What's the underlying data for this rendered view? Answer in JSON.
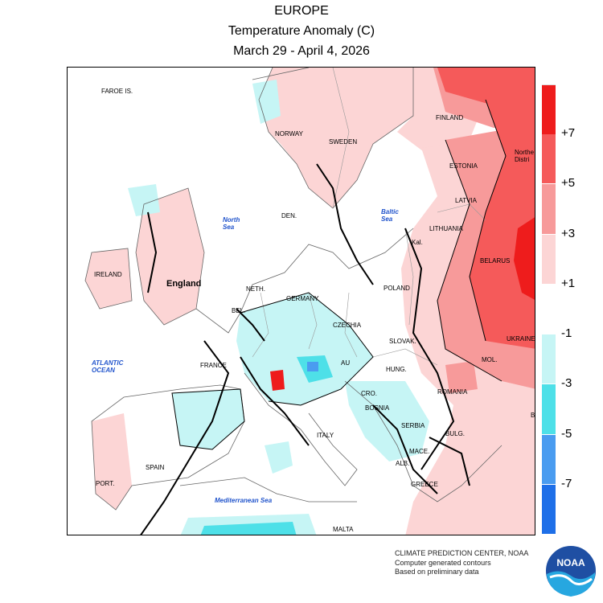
{
  "header": {
    "region": "EUROPE",
    "variable": "Temperature Anomaly (C)",
    "period": "March 29 - April 4, 2026"
  },
  "map": {
    "countries": [
      {
        "key": "faroe",
        "label": "FAROE IS."
      },
      {
        "key": "norway",
        "label": "NORWAY"
      },
      {
        "key": "sweden",
        "label": "SWEDEN"
      },
      {
        "key": "finland",
        "label": "FINLAND"
      },
      {
        "key": "estonia",
        "label": "ESTONIA"
      },
      {
        "key": "latvia",
        "label": "LATVIA"
      },
      {
        "key": "lithuania",
        "label": "LITHUANIA"
      },
      {
        "key": "den",
        "label": "DEN."
      },
      {
        "key": "kal",
        "label": "Kal."
      },
      {
        "key": "ireland",
        "label": "IRELAND"
      },
      {
        "key": "netherlands",
        "label": "NETH."
      },
      {
        "key": "belgium",
        "label": "BEL."
      },
      {
        "key": "germany",
        "label": "GERMANY"
      },
      {
        "key": "poland",
        "label": "POLAND"
      },
      {
        "key": "belarus",
        "label": "BELARUS"
      },
      {
        "key": "ukraine",
        "label": "UKRAINE"
      },
      {
        "key": "czechia",
        "label": "CZECHIA"
      },
      {
        "key": "slovakia",
        "label": "SLOVAK."
      },
      {
        "key": "france",
        "label": "FRANCE"
      },
      {
        "key": "austria",
        "label": "AU"
      },
      {
        "key": "hungary",
        "label": "HUNG."
      },
      {
        "key": "moldova",
        "label": "MOL."
      },
      {
        "key": "romania",
        "label": "ROMANIA"
      },
      {
        "key": "croatia",
        "label": "CRO."
      },
      {
        "key": "bosnia",
        "label": "BOSNIA"
      },
      {
        "key": "serbia",
        "label": "SERBIA"
      },
      {
        "key": "bulgaria",
        "label": "BULG."
      },
      {
        "key": "maced",
        "label": "MACE."
      },
      {
        "key": "albania",
        "label": "ALB."
      },
      {
        "key": "greece",
        "label": "GREECE"
      },
      {
        "key": "spain",
        "label": "SPAIN"
      },
      {
        "key": "portugal",
        "label": "PORT."
      },
      {
        "key": "italy",
        "label": "ITALY"
      },
      {
        "key": "malta",
        "label": "MALTA"
      },
      {
        "key": "northern_district",
        "label": "Northe\nDistri"
      },
      {
        "key": "b_fragment",
        "label": "B"
      }
    ],
    "regions": [
      {
        "key": "england",
        "label": "England"
      }
    ],
    "seas": [
      {
        "key": "north_sea",
        "label": "North\nSea"
      },
      {
        "key": "baltic_sea",
        "label": "Baltic\nSea"
      },
      {
        "key": "atlantic",
        "label": "ATLANTIC\nOCEAN"
      },
      {
        "key": "med",
        "label": "Mediterranean Sea"
      }
    ]
  },
  "legend": {
    "ticks": [
      "+7",
      "+5",
      "+3",
      "+1",
      "-1",
      "-3",
      "-5",
      "-7"
    ],
    "bins": [
      {
        "range": "> +7",
        "color": "#ee1c1c"
      },
      {
        "range": "+5 to +7",
        "color": "#f55a5a"
      },
      {
        "range": "+3 to +5",
        "color": "#f79a9a"
      },
      {
        "range": "+1 to +3",
        "color": "#fcd5d5"
      },
      {
        "range": "-1 to +1",
        "color": "#ffffff"
      },
      {
        "range": "-3 to -1",
        "color": "#c6f5f5"
      },
      {
        "range": "-5 to -3",
        "color": "#4ee0e8"
      },
      {
        "range": "-7 to -5",
        "color": "#4a9cf0"
      },
      {
        "range": "< -7",
        "color": "#1e6fe8"
      }
    ]
  },
  "credits": {
    "line1": "CLIMATE PREDICTION CENTER, NOAA",
    "line2": "Computer generated contours",
    "line3": "Based on preliminary data"
  },
  "logo": {
    "text": "NOAA",
    "icon": "noaa-logo-icon"
  },
  "colors": {
    "warm_strong": "#ee1c1c",
    "warm_mid": "#f55a5a",
    "warm_light": "#f79a9a",
    "warm_faint": "#fcd5d5",
    "cool_faint": "#c6f5f5",
    "cool_mid": "#4ee0e8",
    "cool_strong": "#4a9cf0",
    "sea_label": "#2255cc"
  }
}
